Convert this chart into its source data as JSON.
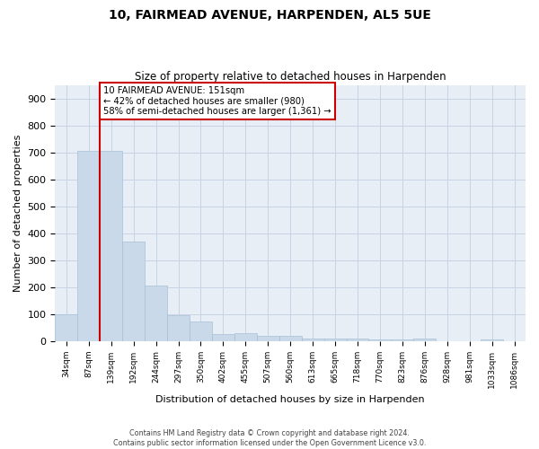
{
  "title": "10, FAIRMEAD AVENUE, HARPENDEN, AL5 5UE",
  "subtitle": "Size of property relative to detached houses in Harpenden",
  "xlabel": "Distribution of detached houses by size in Harpenden",
  "ylabel": "Number of detached properties",
  "categories": [
    "34sqm",
    "87sqm",
    "139sqm",
    "192sqm",
    "244sqm",
    "297sqm",
    "350sqm",
    "402sqm",
    "455sqm",
    "507sqm",
    "560sqm",
    "613sqm",
    "665sqm",
    "718sqm",
    "770sqm",
    "823sqm",
    "876sqm",
    "928sqm",
    "981sqm",
    "1033sqm",
    "1086sqm"
  ],
  "values": [
    100,
    707,
    707,
    370,
    205,
    95,
    72,
    27,
    30,
    18,
    18,
    10,
    8,
    8,
    5,
    5,
    10,
    0,
    0,
    7,
    0
  ],
  "bar_color": "#c9d9ea",
  "bar_edge_color": "#a8c0d6",
  "grid_color": "#c8d4e4",
  "plot_bg_color": "#e8eef6",
  "figure_bg_color": "#ffffff",
  "vline_color": "#cc0000",
  "annotation_text": "10 FAIRMEAD AVENUE: 151sqm\n← 42% of detached houses are smaller (980)\n58% of semi-detached houses are larger (1,361) →",
  "annotation_box_color": "#cc0000",
  "footer_line1": "Contains HM Land Registry data © Crown copyright and database right 2024.",
  "footer_line2": "Contains public sector information licensed under the Open Government Licence v3.0.",
  "ylim": [
    0,
    950
  ],
  "yticks": [
    0,
    100,
    200,
    300,
    400,
    500,
    600,
    700,
    800,
    900
  ],
  "vline_pos": 1.5
}
